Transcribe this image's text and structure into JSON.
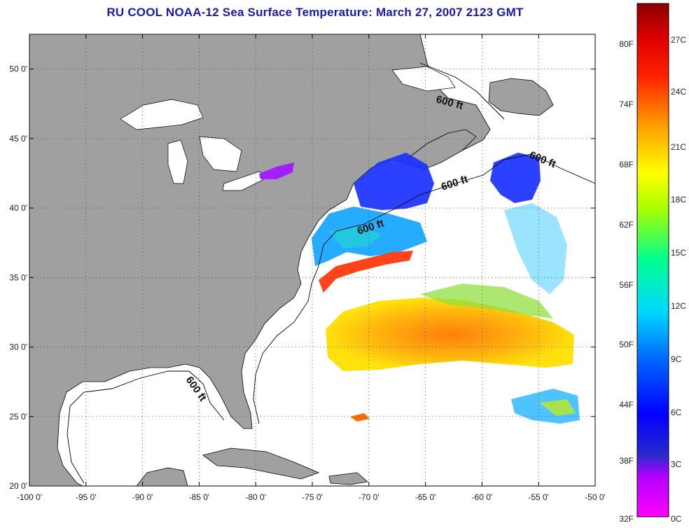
{
  "title": "RU COOL  NOAA-12  Sea Surface Temperature:  March 27, 2007 2123 GMT",
  "map": {
    "lon_range": [
      -100,
      -50
    ],
    "lat_range": [
      20,
      52.5
    ],
    "lon_ticks": [
      "-100 0'",
      "-95 0'",
      "-90 0'",
      "-85 0'",
      "-80 0'",
      "-75 0'",
      "-70 0'",
      "-65 0'",
      "-60 0'",
      "-55 0'",
      "-50 0'"
    ],
    "lat_ticks": [
      "20 0'",
      "25 0'",
      "30 0'",
      "35 0'",
      "40 0'",
      "45 0'",
      "50 0'"
    ],
    "grid": "dotted",
    "land_color": "#a0a0a0",
    "contour_labels": [
      "600 ft",
      "600 ft",
      "600 ft",
      "600 ft",
      "600 ft"
    ]
  },
  "colorbar": {
    "fahrenheit_labels": [
      "80F",
      "74F",
      "68F",
      "62F",
      "56F",
      "50F",
      "44F",
      "38F",
      "32F"
    ],
    "celsius_labels": [
      "27C",
      "24C",
      "21C",
      "18C",
      "15C",
      "12C",
      "9C",
      "6C",
      "3C",
      "0C"
    ],
    "colors": [
      "#ff00ff",
      "#8800ff",
      "#0000ff",
      "#0088ff",
      "#00e5ff",
      "#00ff88",
      "#b0ff00",
      "#ffff00",
      "#ffa000",
      "#ff3000",
      "#e00000",
      "#8a0000"
    ]
  }
}
